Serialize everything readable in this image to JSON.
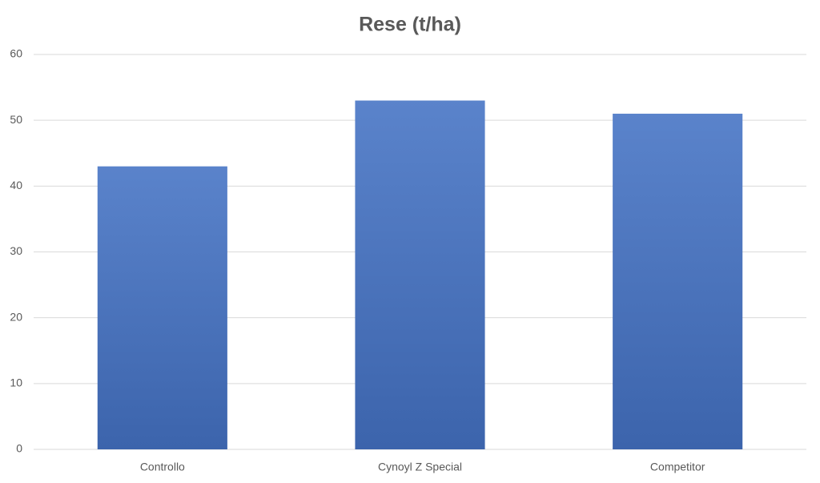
{
  "chart_data": {
    "type": "bar",
    "title": "Rese (t/ha)",
    "categories": [
      "Controllo",
      "Cynoyl Z Special",
      "Competitor"
    ],
    "values": [
      43,
      53,
      51
    ],
    "color": "#4472c4",
    "ylim": [
      0,
      60
    ],
    "yticks": [
      0,
      10,
      20,
      30,
      40,
      50,
      60
    ],
    "grid": true
  }
}
